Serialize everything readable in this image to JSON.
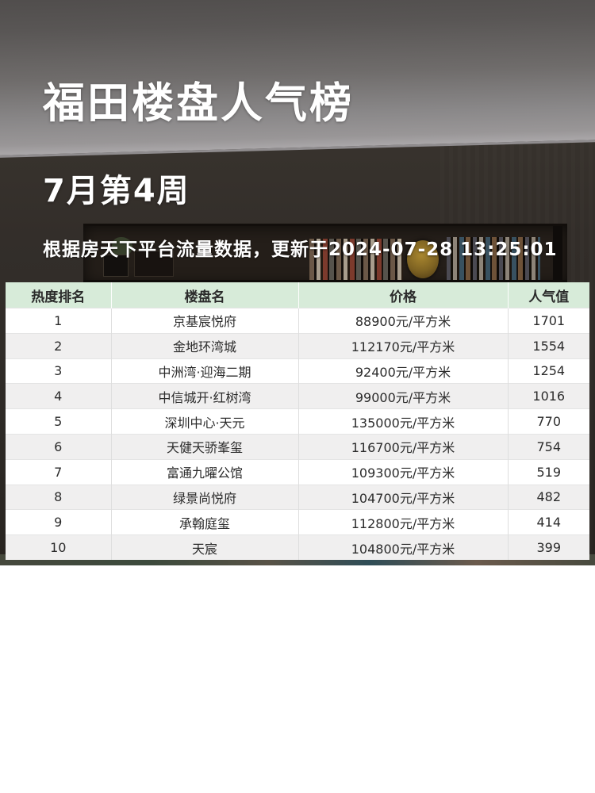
{
  "header": {
    "title": "福田楼盘人气榜",
    "subtitle": "7月第4周",
    "note": "根据房天下平台流量数据，更新于2024-07-28 13:25:01"
  },
  "table": {
    "columns": [
      "热度排名",
      "楼盘名",
      "价格",
      "人气值"
    ],
    "rows": [
      {
        "rank": "1",
        "name": "京基宸悦府",
        "price": "88900元/平方米",
        "popularity": "1701"
      },
      {
        "rank": "2",
        "name": "金地环湾城",
        "price": "112170元/平方米",
        "popularity": "1554"
      },
      {
        "rank": "3",
        "name": "中洲湾·迎海二期",
        "price": "92400元/平方米",
        "popularity": "1254"
      },
      {
        "rank": "4",
        "name": "中信城开·红树湾",
        "price": "99000元/平方米",
        "popularity": "1016"
      },
      {
        "rank": "5",
        "name": "深圳中心·天元",
        "price": "135000元/平方米",
        "popularity": "770"
      },
      {
        "rank": "6",
        "name": "天健天骄峯玺",
        "price": "116700元/平方米",
        "popularity": "754"
      },
      {
        "rank": "7",
        "name": "富通九曜公馆",
        "price": "109300元/平方米",
        "popularity": "519"
      },
      {
        "rank": "8",
        "name": "绿景尚悦府",
        "price": "104700元/平方米",
        "popularity": "482"
      },
      {
        "rank": "9",
        "name": "承翰庭玺",
        "price": "112800元/平方米",
        "popularity": "414"
      },
      {
        "rank": "10",
        "name": "天宸",
        "price": "104800元/平方米",
        "popularity": "399"
      }
    ]
  },
  "colors": {
    "header_bg": "#d7ebd9",
    "row_alt_bg": "#f0efef",
    "table_text": "#2b2b2b",
    "headline_text": "#ffffff"
  }
}
